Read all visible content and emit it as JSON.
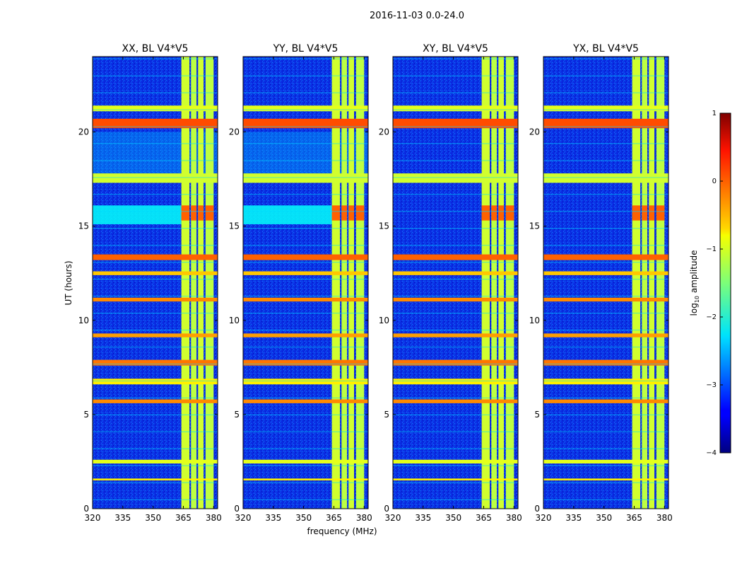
{
  "figure": {
    "suptitle": "2016-11-03 0.0-24.0"
  },
  "chart_data": {
    "type": "heatmap",
    "xlabel": "frequency (MHz)",
    "ylabel": "UT (hours)",
    "xlim": [
      320,
      382
    ],
    "ylim": [
      0,
      24
    ],
    "x_ticks": [
      320,
      335,
      350,
      365,
      380
    ],
    "y_ticks": [
      0,
      5,
      10,
      15,
      20
    ],
    "panels": [
      {
        "title": "XX, BL V4*V5"
      },
      {
        "title": "YY, BL V4*V5"
      },
      {
        "title": "XY, BL V4*V5"
      },
      {
        "title": "YX, BL V4*V5"
      }
    ],
    "colorbar": {
      "label": "log10 amplitude",
      "label_main": "log",
      "label_sub": "10",
      "label_tail": " amplitude",
      "range": [
        -4,
        1
      ],
      "ticks": [
        "1",
        "0",
        "−1",
        "−2",
        "−3",
        "−4"
      ],
      "colormap": "jet"
    },
    "rfi_horizontal_bands": [
      {
        "ut_start": 20.2,
        "ut_end": 20.7,
        "level": 0.0
      },
      {
        "ut_start": 21.1,
        "ut_end": 21.4,
        "level": -1.0
      },
      {
        "ut_start": 17.3,
        "ut_end": 17.8,
        "level": -1.1
      },
      {
        "ut_start": 13.2,
        "ut_end": 13.5,
        "level": -0.1
      },
      {
        "ut_start": 12.4,
        "ut_end": 12.6,
        "level": -0.6
      },
      {
        "ut_start": 11.0,
        "ut_end": 11.2,
        "level": -0.3
      },
      {
        "ut_start": 9.1,
        "ut_end": 9.3,
        "level": -0.4
      },
      {
        "ut_start": 7.6,
        "ut_end": 7.9,
        "level": -0.2
      },
      {
        "ut_start": 6.6,
        "ut_end": 6.9,
        "level": -0.8
      },
      {
        "ut_start": 5.6,
        "ut_end": 5.8,
        "level": -0.3
      },
      {
        "ut_start": 2.4,
        "ut_end": 2.6,
        "level": -1.0
      },
      {
        "ut_start": 1.5,
        "ut_end": 1.6,
        "level": -0.8
      }
    ],
    "rfi_vertical_bands": [
      {
        "freq_start": 364.0,
        "freq_end": 368.0,
        "level": -1.1
      },
      {
        "freq_start": 368.8,
        "freq_end": 371.5,
        "level": -1.2
      },
      {
        "freq_start": 372.3,
        "freq_end": 375.0,
        "level": -1.1
      },
      {
        "freq_start": 376.0,
        "freq_end": 380.0,
        "level": -1.2
      }
    ],
    "background_level": -3.2
  }
}
